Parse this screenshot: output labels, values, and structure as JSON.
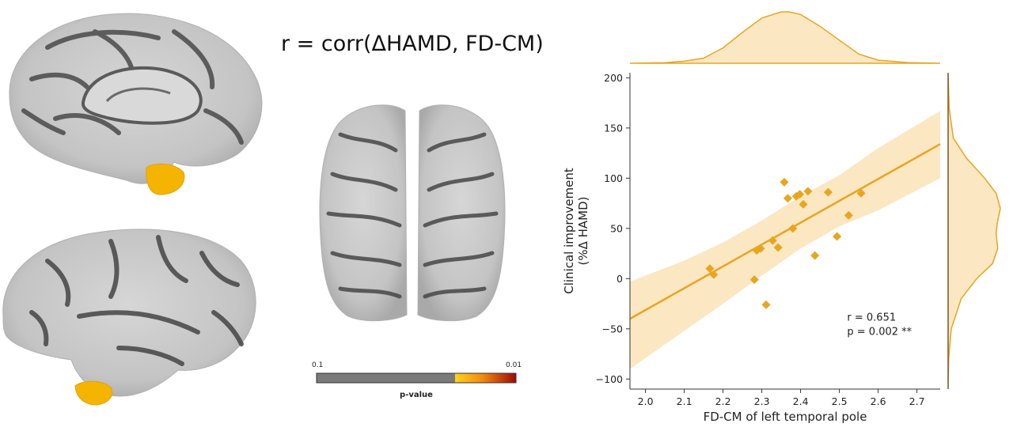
{
  "figure": {
    "formula": "r = corr(ΔHAMD, FD-CM)"
  },
  "colorbar": {
    "min_label": "0.1",
    "max_label": "0.01",
    "title": "p-value",
    "highlight_start_fraction": 0.7
  },
  "chart_data": {
    "type": "scatter",
    "title": "",
    "xlabel": "FD-CM of left temporal pole",
    "ylabel_line1": "Clinical improvement",
    "ylabel_line2": "(%Δ HAMD)",
    "xlim": [
      1.96,
      2.76
    ],
    "ylim": [
      -110,
      205
    ],
    "xticks": [
      "2.0",
      "2.1",
      "2.2",
      "2.3",
      "2.4",
      "2.5",
      "2.6",
      "2.7"
    ],
    "yticks": [
      "200",
      "150",
      "100",
      "50",
      "0",
      "−50",
      "−100"
    ],
    "grid": false,
    "color": "#E8A520",
    "points": [
      {
        "x": 2.166,
        "y": 10
      },
      {
        "x": 2.176,
        "y": 4
      },
      {
        "x": 2.281,
        "y": -1
      },
      {
        "x": 2.287,
        "y": 28
      },
      {
        "x": 2.297,
        "y": 30
      },
      {
        "x": 2.311,
        "y": -26
      },
      {
        "x": 2.328,
        "y": 38
      },
      {
        "x": 2.342,
        "y": 31
      },
      {
        "x": 2.358,
        "y": 96
      },
      {
        "x": 2.367,
        "y": 80
      },
      {
        "x": 2.38,
        "y": 50
      },
      {
        "x": 2.389,
        "y": 82
      },
      {
        "x": 2.398,
        "y": 84
      },
      {
        "x": 2.407,
        "y": 74
      },
      {
        "x": 2.419,
        "y": 87
      },
      {
        "x": 2.437,
        "y": 23
      },
      {
        "x": 2.471,
        "y": 86
      },
      {
        "x": 2.494,
        "y": 42
      },
      {
        "x": 2.524,
        "y": 63
      },
      {
        "x": 2.556,
        "y": 85
      }
    ],
    "regression": {
      "x": [
        1.96,
        2.76
      ],
      "y": [
        -40,
        134
      ]
    },
    "ci_band": {
      "x": [
        1.96,
        2.1,
        2.2,
        2.3,
        2.4,
        2.5,
        2.6,
        2.76
      ],
      "upper": [
        -3,
        18,
        36,
        58,
        82,
        103,
        130,
        167
      ],
      "lower": [
        -90,
        -52,
        -25,
        3,
        30,
        52,
        68,
        100
      ]
    },
    "annotation": {
      "r": "r = 0.651",
      "p": "p = 0.002 **"
    },
    "marginal_top": {
      "x": [
        1.96,
        2.05,
        2.1,
        2.15,
        2.2,
        2.25,
        2.3,
        2.35,
        2.37,
        2.4,
        2.45,
        2.5,
        2.55,
        2.6,
        2.68,
        2.76
      ],
      "density": [
        0.0,
        0.01,
        0.04,
        0.1,
        0.3,
        0.6,
        0.88,
        1.0,
        1.0,
        0.95,
        0.72,
        0.45,
        0.18,
        0.06,
        0.01,
        0.0
      ]
    },
    "marginal_right": {
      "y": [
        205,
        170,
        140,
        120,
        100,
        85,
        70,
        55,
        45,
        30,
        15,
        0,
        -20,
        -50,
        -80,
        -110
      ],
      "density": [
        0.0,
        0.02,
        0.1,
        0.35,
        0.7,
        0.92,
        1.0,
        0.94,
        0.92,
        0.95,
        0.85,
        0.55,
        0.25,
        0.06,
        0.01,
        0.0
      ]
    }
  }
}
